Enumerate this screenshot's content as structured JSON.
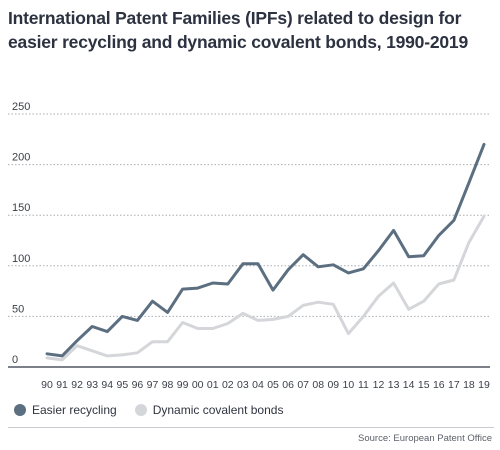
{
  "chart_data": {
    "type": "line",
    "title": "International Patent Families (IPFs) related to design for easier recycling and dynamic covalent bonds, 1990-2019",
    "xlabel": "",
    "ylabel": "",
    "categories": [
      "90",
      "91",
      "92",
      "93",
      "94",
      "95",
      "96",
      "97",
      "98",
      "99",
      "00",
      "01",
      "02",
      "03",
      "04",
      "05",
      "06",
      "07",
      "08",
      "09",
      "10",
      "11",
      "12",
      "13",
      "14",
      "15",
      "16",
      "17",
      "18",
      "19"
    ],
    "ylim": [
      0,
      250
    ],
    "yticks": [
      0,
      50,
      100,
      150,
      200,
      250
    ],
    "grid": true,
    "legend_position": "bottom-left",
    "series": [
      {
        "name": "Easier recycling",
        "color": "#5b6f80",
        "values": [
          13,
          11,
          26,
          40,
          35,
          50,
          46,
          65,
          54,
          77,
          78,
          83,
          82,
          102,
          102,
          76,
          96,
          111,
          99,
          101,
          93,
          97,
          115,
          135,
          109,
          110,
          130,
          145,
          182,
          220
        ]
      },
      {
        "name": "Dynamic covalent bonds",
        "color": "#d4d6d9",
        "values": [
          9,
          7,
          21,
          16,
          11,
          12,
          14,
          25,
          25,
          44,
          38,
          38,
          43,
          53,
          46,
          47,
          50,
          61,
          64,
          62,
          33,
          50,
          70,
          83,
          57,
          65,
          82,
          86,
          123,
          149
        ]
      }
    ],
    "source": "Source: European Patent Office"
  }
}
